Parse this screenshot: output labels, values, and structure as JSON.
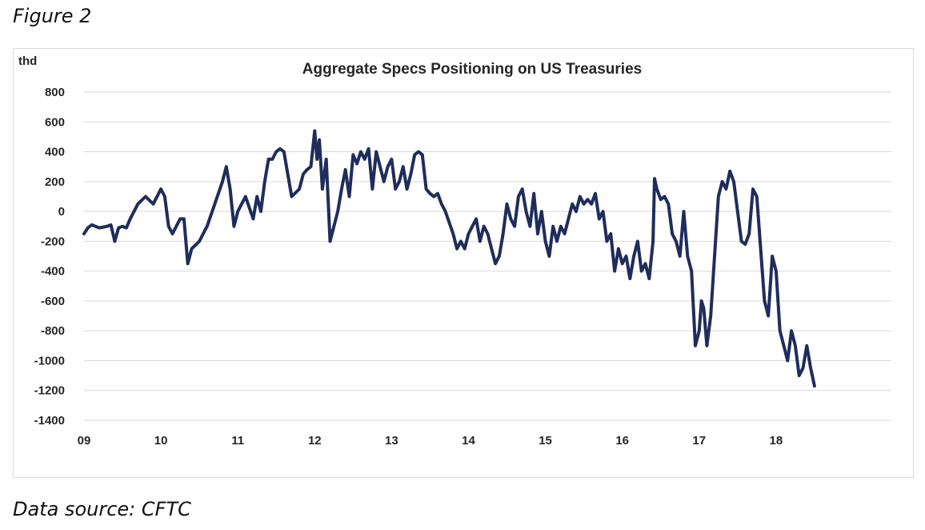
{
  "figure_label": "Figure 2",
  "source_label": "Data source: CFTC",
  "chart_data": {
    "type": "line",
    "title": "Aggregate Specs Positioning on US Treasuries",
    "ylabel": "thd",
    "xlabel": "",
    "ylim": [
      -1400,
      800
    ],
    "yticks": [
      800,
      600,
      400,
      200,
      0,
      -200,
      -400,
      -600,
      -800,
      -1000,
      -1200,
      -1400
    ],
    "ytick_labels": [
      "800",
      "600",
      "400",
      "200",
      "0",
      "-200",
      "-400",
      "-600",
      "-800",
      "-1000",
      "-1200",
      "-1400"
    ],
    "xlim": [
      2009,
      2019.5
    ],
    "xticks": [
      2009,
      2010,
      2011,
      2012,
      2013,
      2014,
      2015,
      2016,
      2017,
      2018
    ],
    "xtick_labels": [
      "09",
      "10",
      "11",
      "12",
      "13",
      "14",
      "15",
      "16",
      "17",
      "18"
    ],
    "grid": true,
    "line_color": "#1f2d5c",
    "series": [
      {
        "name": "",
        "x": [
          2009.0,
          2009.05,
          2009.1,
          2009.2,
          2009.3,
          2009.35,
          2009.4,
          2009.45,
          2009.5,
          2009.55,
          2009.6,
          2009.7,
          2009.8,
          2009.9,
          2010.0,
          2010.05,
          2010.1,
          2010.15,
          2010.25,
          2010.3,
          2010.35,
          2010.4,
          2010.5,
          2010.55,
          2010.6,
          2010.7,
          2010.8,
          2010.85,
          2010.9,
          2010.95,
          2011.0,
          2011.05,
          2011.1,
          2011.2,
          2011.25,
          2011.3,
          2011.35,
          2011.4,
          2011.45,
          2011.5,
          2011.55,
          2011.6,
          2011.7,
          2011.8,
          2011.85,
          2011.9,
          2011.95,
          2012.0,
          2012.03,
          2012.06,
          2012.1,
          2012.15,
          2012.2,
          2012.25,
          2012.3,
          2012.35,
          2012.4,
          2012.45,
          2012.5,
          2012.55,
          2012.6,
          2012.65,
          2012.7,
          2012.75,
          2012.8,
          2012.85,
          2012.9,
          2012.95,
          2013.0,
          2013.05,
          2013.1,
          2013.15,
          2013.2,
          2013.25,
          2013.3,
          2013.35,
          2013.4,
          2013.45,
          2013.5,
          2013.55,
          2013.6,
          2013.65,
          2013.7,
          2013.8,
          2013.85,
          2013.9,
          2013.95,
          2014.0,
          2014.05,
          2014.1,
          2014.15,
          2014.2,
          2014.25,
          2014.3,
          2014.35,
          2014.4,
          2014.45,
          2014.5,
          2014.55,
          2014.6,
          2014.65,
          2014.7,
          2014.75,
          2014.8,
          2014.85,
          2014.9,
          2014.95,
          2015.0,
          2015.05,
          2015.1,
          2015.15,
          2015.2,
          2015.25,
          2015.3,
          2015.35,
          2015.4,
          2015.45,
          2015.5,
          2015.55,
          2015.6,
          2015.65,
          2015.7,
          2015.75,
          2015.8,
          2015.85,
          2015.9,
          2015.95,
          2016.0,
          2016.05,
          2016.1,
          2016.15,
          2016.2,
          2016.25,
          2016.3,
          2016.35,
          2016.4,
          2016.42,
          2016.45,
          2016.5,
          2016.55,
          2016.6,
          2016.65,
          2016.7,
          2016.75,
          2016.8,
          2016.85,
          2016.9,
          2016.95,
          2017.0,
          2017.03,
          2017.06,
          2017.1,
          2017.15,
          2017.2,
          2017.25,
          2017.3,
          2017.35,
          2017.4,
          2017.45,
          2017.5,
          2017.55,
          2017.6,
          2017.65,
          2017.7,
          2017.75,
          2017.8,
          2017.85,
          2017.9,
          2017.95,
          2018.0,
          2018.05,
          2018.1,
          2018.15,
          2018.2,
          2018.25,
          2018.3,
          2018.35,
          2018.4,
          2018.45,
          2018.5
        ],
        "values": [
          -150,
          -110,
          -90,
          -110,
          -100,
          -90,
          -200,
          -110,
          -100,
          -110,
          -50,
          50,
          100,
          50,
          150,
          100,
          -100,
          -150,
          -50,
          -50,
          -350,
          -250,
          -200,
          -150,
          -100,
          50,
          200,
          300,
          150,
          -100,
          0,
          50,
          100,
          -50,
          100,
          0,
          200,
          350,
          350,
          400,
          420,
          400,
          100,
          150,
          250,
          280,
          300,
          540,
          350,
          480,
          150,
          350,
          -200,
          -100,
          0,
          150,
          280,
          100,
          380,
          320,
          400,
          350,
          420,
          150,
          400,
          300,
          200,
          300,
          350,
          150,
          200,
          300,
          150,
          250,
          380,
          400,
          380,
          150,
          120,
          100,
          120,
          50,
          0,
          -150,
          -250,
          -200,
          -250,
          -150,
          -100,
          -50,
          -200,
          -100,
          -150,
          -250,
          -350,
          -300,
          -150,
          50,
          -50,
          -100,
          100,
          150,
          0,
          -100,
          120,
          -150,
          0,
          -200,
          -300,
          -100,
          -200,
          -100,
          -150,
          -50,
          50,
          0,
          100,
          50,
          80,
          50,
          120,
          -50,
          0,
          -200,
          -150,
          -400,
          -250,
          -350,
          -300,
          -450,
          -300,
          -200,
          -400,
          -350,
          -450,
          -200,
          220,
          150,
          80,
          100,
          50,
          -150,
          -200,
          -300,
          0,
          -300,
          -400,
          -900,
          -800,
          -600,
          -650,
          -900,
          -700,
          -300,
          100,
          200,
          150,
          270,
          200,
          0,
          -200,
          -220,
          -150,
          150,
          100,
          -250,
          -600,
          -700,
          -300,
          -400,
          -800,
          -900,
          -1000,
          -800,
          -900,
          -1100,
          -1050,
          -900,
          -1050,
          -1170
        ]
      }
    ]
  }
}
